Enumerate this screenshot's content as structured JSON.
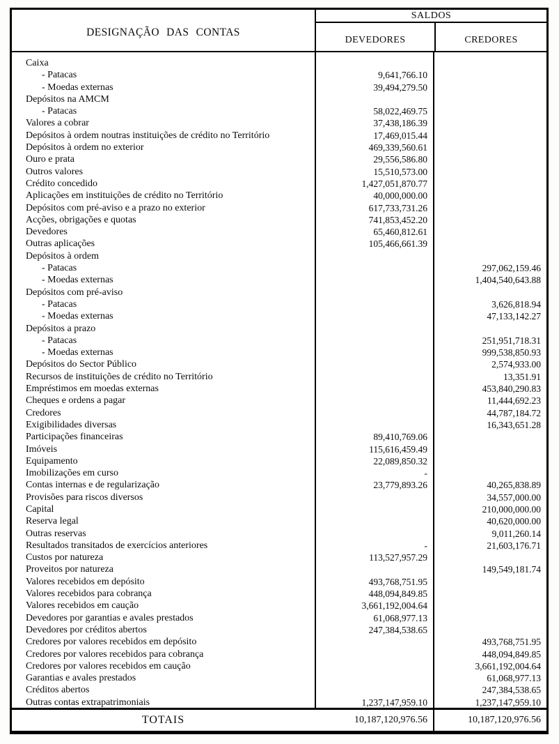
{
  "colors": {
    "ink": "#000000",
    "paper": "#ffffff"
  },
  "table": {
    "header": {
      "designacao": "DESIGNAÇÃO DAS CONTAS",
      "saldos": "SALDOS",
      "devedores": "DEVEDORES",
      "credores": "CREDORES"
    },
    "rows": [
      {
        "label": "Caixa",
        "indent": 0,
        "dev": "",
        "cred": ""
      },
      {
        "label": "- Patacas",
        "indent": 1,
        "dev": "9,641,766.10",
        "cred": ""
      },
      {
        "label": "- Moedas externas",
        "indent": 1,
        "dev": "39,494,279.50",
        "cred": ""
      },
      {
        "label": "Depósitos na AMCM",
        "indent": 0,
        "dev": "",
        "cred": ""
      },
      {
        "label": "- Patacas",
        "indent": 1,
        "dev": "58,022,469.75",
        "cred": ""
      },
      {
        "label": "Valores a cobrar",
        "indent": 0,
        "dev": "37,438,186.39",
        "cred": ""
      },
      {
        "label": "Depósitos à ordem noutras instituições de crédito no Território",
        "indent": 0,
        "dev": "17,469,015.44",
        "cred": ""
      },
      {
        "label": "Depósitos à ordem no exterior",
        "indent": 0,
        "dev": "469,339,560.61",
        "cred": ""
      },
      {
        "label": "Ouro e prata",
        "indent": 0,
        "dev": "29,556,586.80",
        "cred": ""
      },
      {
        "label": "Outros valores",
        "indent": 0,
        "dev": "15,510,573.00",
        "cred": ""
      },
      {
        "label": "Crédito concedido",
        "indent": 0,
        "dev": "1,427,051,870.77",
        "cred": ""
      },
      {
        "label": "Aplicações em instituições de crédito no Território",
        "indent": 0,
        "dev": "40,000,000.00",
        "cred": ""
      },
      {
        "label": "Depósitos com pré-aviso e a prazo no exterior",
        "indent": 0,
        "dev": "617,733,731.26",
        "cred": ""
      },
      {
        "label": "Acções, obrigações e quotas",
        "indent": 0,
        "dev": "741,853,452.20",
        "cred": ""
      },
      {
        "label": "Devedores",
        "indent": 0,
        "dev": "65,460,812.61",
        "cred": ""
      },
      {
        "label": "Outras aplicações",
        "indent": 0,
        "dev": "105,466,661.39",
        "cred": ""
      },
      {
        "label": "Depósitos à ordem",
        "indent": 0,
        "dev": "",
        "cred": ""
      },
      {
        "label": "- Patacas",
        "indent": 1,
        "dev": "",
        "cred": "297,062,159.46"
      },
      {
        "label": "- Moedas externas",
        "indent": 1,
        "dev": "",
        "cred": "1,404,540,643.88"
      },
      {
        "label": "Depósitos com pré-aviso",
        "indent": 0,
        "dev": "",
        "cred": ""
      },
      {
        "label": "- Patacas",
        "indent": 1,
        "dev": "",
        "cred": "3,626,818.94"
      },
      {
        "label": "- Moedas externas",
        "indent": 1,
        "dev": "",
        "cred": "47,133,142.27"
      },
      {
        "label": "Depósitos a prazo",
        "indent": 0,
        "dev": "",
        "cred": ""
      },
      {
        "label": "- Patacas",
        "indent": 1,
        "dev": "",
        "cred": "251,951,718.31"
      },
      {
        "label": "- Moedas externas",
        "indent": 1,
        "dev": "",
        "cred": "999,538,850.93"
      },
      {
        "label": "Depósitos do Sector Público",
        "indent": 0,
        "dev": "",
        "cred": "2,574,933.00"
      },
      {
        "label": "Recursos de instituições de crédito no Território",
        "indent": 0,
        "dev": "",
        "cred": "13,351.91"
      },
      {
        "label": "Empréstimos em moedas externas",
        "indent": 0,
        "dev": "",
        "cred": "453,840,290.83"
      },
      {
        "label": "Cheques e ordens a pagar",
        "indent": 0,
        "dev": "",
        "cred": "11,444,692.23"
      },
      {
        "label": "Credores",
        "indent": 0,
        "dev": "",
        "cred": "44,787,184.72"
      },
      {
        "label": "Exigibilidades diversas",
        "indent": 0,
        "dev": "",
        "cred": "16,343,651.28"
      },
      {
        "label": "Participações financeiras",
        "indent": 0,
        "dev": "89,410,769.06",
        "cred": ""
      },
      {
        "label": "Imóveis",
        "indent": 0,
        "dev": "115,616,459.49",
        "cred": ""
      },
      {
        "label": "Equipamento",
        "indent": 0,
        "dev": "22,089,850.32",
        "cred": ""
      },
      {
        "label": "Imobilizações em curso",
        "indent": 0,
        "dev": "-",
        "cred": ""
      },
      {
        "label": "Contas internas e de regularização",
        "indent": 0,
        "dev": "23,779,893.26",
        "cred": "40,265,838.89"
      },
      {
        "label": "Provisões para riscos diversos",
        "indent": 0,
        "dev": "",
        "cred": "34,557,000.00"
      },
      {
        "label": "Capital",
        "indent": 0,
        "dev": "",
        "cred": "210,000,000.00"
      },
      {
        "label": "Reserva legal",
        "indent": 0,
        "dev": "",
        "cred": "40,620,000.00"
      },
      {
        "label": "Outras reservas",
        "indent": 0,
        "dev": "",
        "cred": "9,011,260.14"
      },
      {
        "label": "Resultados transitados de exercícios anteriores",
        "indent": 0,
        "dev": "-",
        "cred": "21,603,176.71"
      },
      {
        "label": "Custos por natureza",
        "indent": 0,
        "dev": "113,527,957.29",
        "cred": ""
      },
      {
        "label": "Proveitos por natureza",
        "indent": 0,
        "dev": "",
        "cred": "149,549,181.74"
      },
      {
        "label": "Valores recebidos em depósito",
        "indent": 0,
        "dev": "493,768,751.95",
        "cred": ""
      },
      {
        "label": "Valores recebidos para cobrança",
        "indent": 0,
        "dev": "448,094,849.85",
        "cred": ""
      },
      {
        "label": "Valores recebidos em caução",
        "indent": 0,
        "dev": "3,661,192,004.64",
        "cred": ""
      },
      {
        "label": "Devedores por garantias e avales prestados",
        "indent": 0,
        "dev": "61,068,977.13",
        "cred": ""
      },
      {
        "label": "Devedores por créditos abertos",
        "indent": 0,
        "dev": "247,384,538.65",
        "cred": ""
      },
      {
        "label": "Credores por valores recebidos em depósito",
        "indent": 0,
        "dev": "",
        "cred": "493,768,751.95"
      },
      {
        "label": "Credores por valores recebidos para cobrança",
        "indent": 0,
        "dev": "",
        "cred": "448,094,849.85"
      },
      {
        "label": "Credores por valores recebidos em caução",
        "indent": 0,
        "dev": "",
        "cred": "3,661,192,004.64"
      },
      {
        "label": "Garantias e avales prestados",
        "indent": 0,
        "dev": "",
        "cred": "61,068,977.13"
      },
      {
        "label": "Créditos abertos",
        "indent": 0,
        "dev": "",
        "cred": "247,384,538.65"
      },
      {
        "label": "Outras contas extrapatrimoniais",
        "indent": 0,
        "dev": "1,237,147,959.10",
        "cred": "1,237,147,959.10"
      }
    ],
    "totals": {
      "label": "TOTAIS",
      "dev": "10,187,120,976.56",
      "cred": "10,187,120,976.56"
    }
  }
}
